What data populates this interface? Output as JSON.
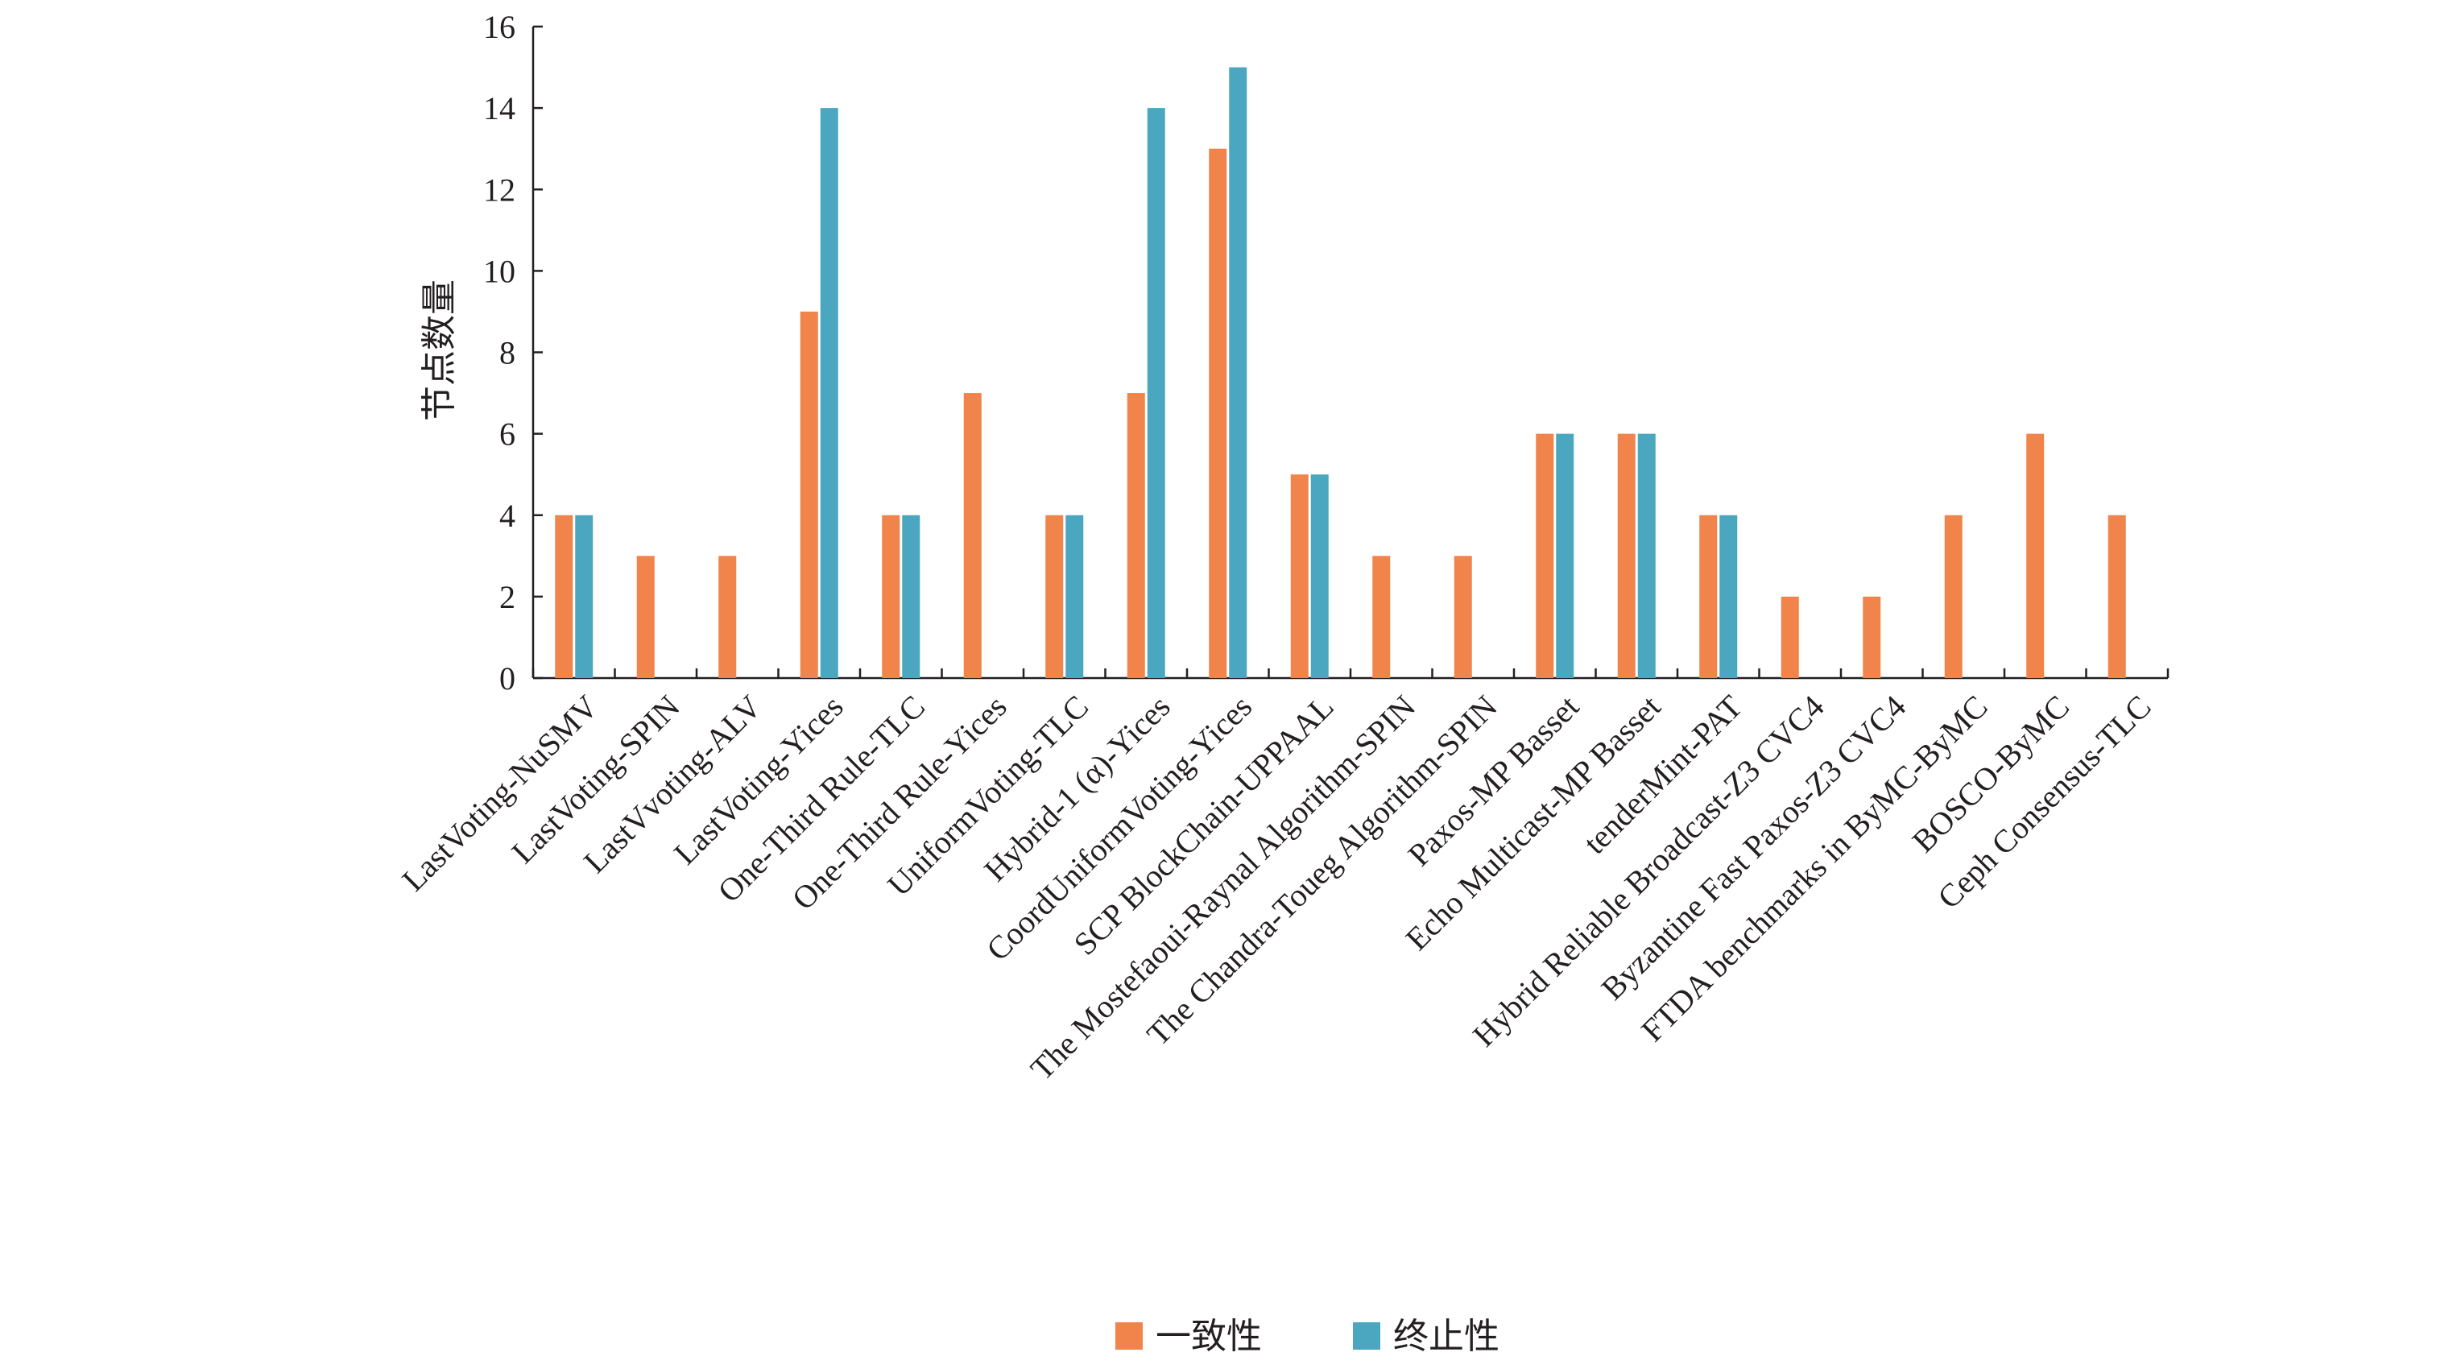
{
  "chart_data": {
    "type": "bar",
    "ylabel": "节点数量",
    "xlabel": "",
    "ylim": [
      0,
      16
    ],
    "yticks": [
      0,
      2,
      4,
      6,
      8,
      10,
      12,
      14,
      16
    ],
    "grid": false,
    "legend_position": "bottom-center",
    "categories": [
      "LastVoting-NuSMV",
      "LastVoting-SPIN",
      "LastVvoting-ALV",
      "LastVoting-Yices",
      "One-Third Rule-TLC",
      "One-Third Rule-Yices",
      "UniformVoting-TLC",
      "Hybrid-1 (α)-Yices",
      "CoordUniformVoting-Yices",
      "SCP BlockChain-UPPAAL",
      "The Mostefaoui-Raynal Algorithm-SPIN",
      "The Chandra-Toueg Algorithm-SPIN",
      "Paxos-MP Basset",
      "Echo Multicast-MP Basset",
      "tenderMint-PAT",
      "Hybrid Reliable Broadcast-Z3 CVC4",
      "Byzantine Fast Paxos-Z3 CVC4",
      "FTDA benchmarks in ByMC-ByMC",
      "BOSCO-ByMC",
      "Ceph Consensus-TLC"
    ],
    "series": [
      {
        "name": "一致性",
        "color": "#f0844a",
        "values": [
          4,
          3,
          3,
          9,
          4,
          7,
          4,
          7,
          13,
          5,
          3,
          3,
          6,
          6,
          4,
          2,
          2,
          4,
          6,
          4
        ]
      },
      {
        "name": "终止性",
        "color": "#4aa7bf",
        "values": [
          4,
          null,
          null,
          14,
          4,
          null,
          4,
          14,
          15,
          5,
          null,
          null,
          6,
          6,
          4,
          null,
          null,
          null,
          null,
          null
        ]
      }
    ]
  }
}
